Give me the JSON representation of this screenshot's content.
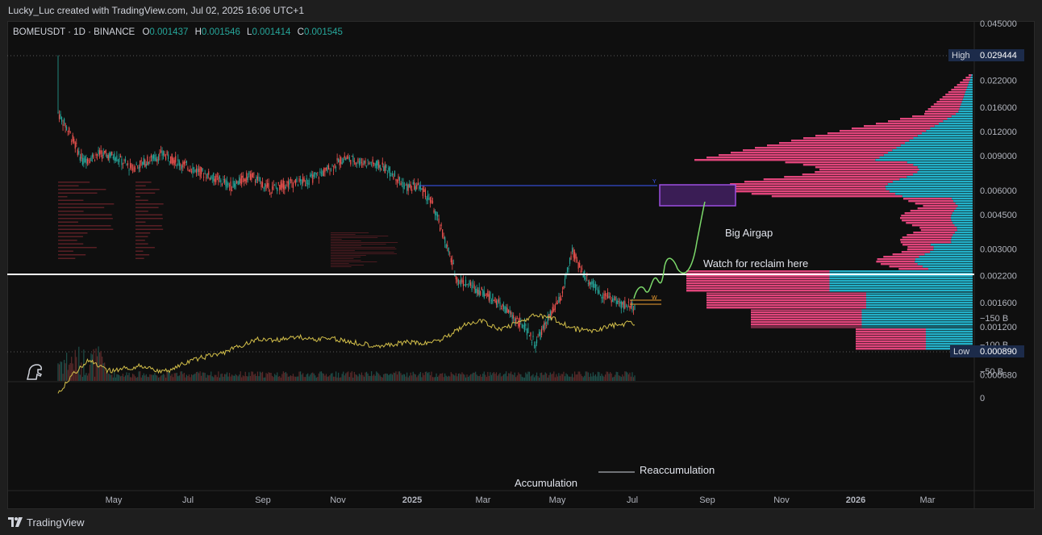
{
  "header": {
    "caption": "Lucky_Luc created with TradingView.com, Jul 02, 2025 16:06 UTC+1"
  },
  "symbol": {
    "name": "BOMEUSDT · 1D · BINANCE",
    "o_label": "O",
    "o_value": "0.001437",
    "h_label": "H",
    "h_value": "0.001546",
    "l_label": "L",
    "l_value": "0.001414",
    "c_label": "C",
    "c_value": "0.001545"
  },
  "footer": {
    "brand": "TradingView"
  },
  "colors": {
    "up": "#26a69a",
    "down": "#ef5350",
    "volume_profile_red": "#e0457b",
    "volume_profile_cyan": "#23b0c8",
    "cvd_line": "#d4c04a",
    "projection": "#7cd96b"
  },
  "chart_data": [
    {
      "type": "line",
      "panel": "price",
      "y_scale": "log",
      "ylim": [
        0.00062,
        0.05
      ],
      "x_tick_labels": [
        "May",
        "Jul",
        "Sep",
        "Nov",
        "2025",
        "Mar",
        "May",
        "Jul",
        "Sep",
        "Nov",
        "2026",
        "Mar"
      ],
      "y_tick_labels": [
        "0.045000",
        "0.022000",
        "0.016000",
        "0.012000",
        "0.009000",
        "0.006000",
        "0.004500",
        "0.003000",
        "0.002200",
        "0.001600",
        "0.001200",
        "0.000680"
      ],
      "price_labels": [
        {
          "label": "High",
          "value": "0.029444"
        },
        {
          "label": "Low",
          "value": "0.000890"
        }
      ],
      "annotations": [
        "Big Airgap",
        "Watch for reclaim here"
      ],
      "series": [
        {
          "x": [
            "2024-03-16",
            "2024-03-25",
            "2024-04-05",
            "2024-04-18",
            "2024-05-01",
            "2024-05-15",
            "2024-05-28",
            "2024-06-10",
            "2024-06-25",
            "2024-07-10",
            "2024-07-25",
            "2024-08-05",
            "2024-08-20",
            "2024-09-05",
            "2024-09-20",
            "2024-10-05",
            "2024-10-20",
            "2024-11-05",
            "2024-11-15",
            "2024-11-25",
            "2024-12-05",
            "2024-12-15",
            "2024-12-25",
            "2025-01-05",
            "2025-01-15",
            "2025-01-25",
            "2025-02-05",
            "2025-02-20",
            "2025-03-05",
            "2025-03-20",
            "2025-04-01",
            "2025-04-10",
            "2025-04-20",
            "2025-05-01",
            "2025-05-10",
            "2025-05-20",
            "2025-06-01",
            "2025-06-10",
            "2025-06-20",
            "2025-06-30"
          ],
          "values": [
            0.015,
            0.012,
            0.0085,
            0.0092,
            0.009,
            0.0078,
            0.0085,
            0.0092,
            0.0082,
            0.0075,
            0.0068,
            0.0063,
            0.0072,
            0.0061,
            0.0065,
            0.0067,
            0.0075,
            0.0088,
            0.0085,
            0.0083,
            0.008,
            0.0073,
            0.0062,
            0.0063,
            0.0052,
            0.0035,
            0.0021,
            0.0019,
            0.0017,
            0.0014,
            0.0012,
            0.00098,
            0.0013,
            0.0017,
            0.0029,
            0.0022,
            0.0018,
            0.0017,
            0.00155,
            0.00155
          ]
        }
      ]
    },
    {
      "type": "line",
      "panel": "indicator",
      "ylim": [
        -165,
        8
      ],
      "y_tick_labels": [
        "0",
        "−50 B",
        "−100 B",
        "−150 B"
      ],
      "annotations": [
        "Reaccumulation",
        "Accumulation"
      ],
      "series": [
        {
          "x": [
            "2024-03-16",
            "2024-03-28",
            "2024-04-10",
            "2024-04-25",
            "2024-05-10",
            "2024-05-25",
            "2024-06-10",
            "2024-06-25",
            "2024-07-10",
            "2024-07-25",
            "2024-08-10",
            "2024-08-25",
            "2024-09-10",
            "2024-09-25",
            "2024-10-10",
            "2024-10-25",
            "2024-11-10",
            "2024-11-25",
            "2024-12-10",
            "2024-12-25",
            "2025-01-10",
            "2025-01-25",
            "2025-02-10",
            "2025-02-25",
            "2025-03-10",
            "2025-03-25",
            "2025-04-10",
            "2025-04-25",
            "2025-05-10",
            "2025-05-25",
            "2025-06-10",
            "2025-06-25",
            "2025-06-30"
          ],
          "values": [
            -5,
            -45,
            -70,
            -50,
            -55,
            -60,
            -48,
            -62,
            -75,
            -82,
            -95,
            -110,
            -108,
            -115,
            -110,
            -112,
            -105,
            -100,
            -98,
            -104,
            -102,
            -112,
            -135,
            -145,
            -128,
            -140,
            -155,
            -148,
            -130,
            -125,
            -135,
            -140,
            -140
          ]
        }
      ]
    }
  ]
}
